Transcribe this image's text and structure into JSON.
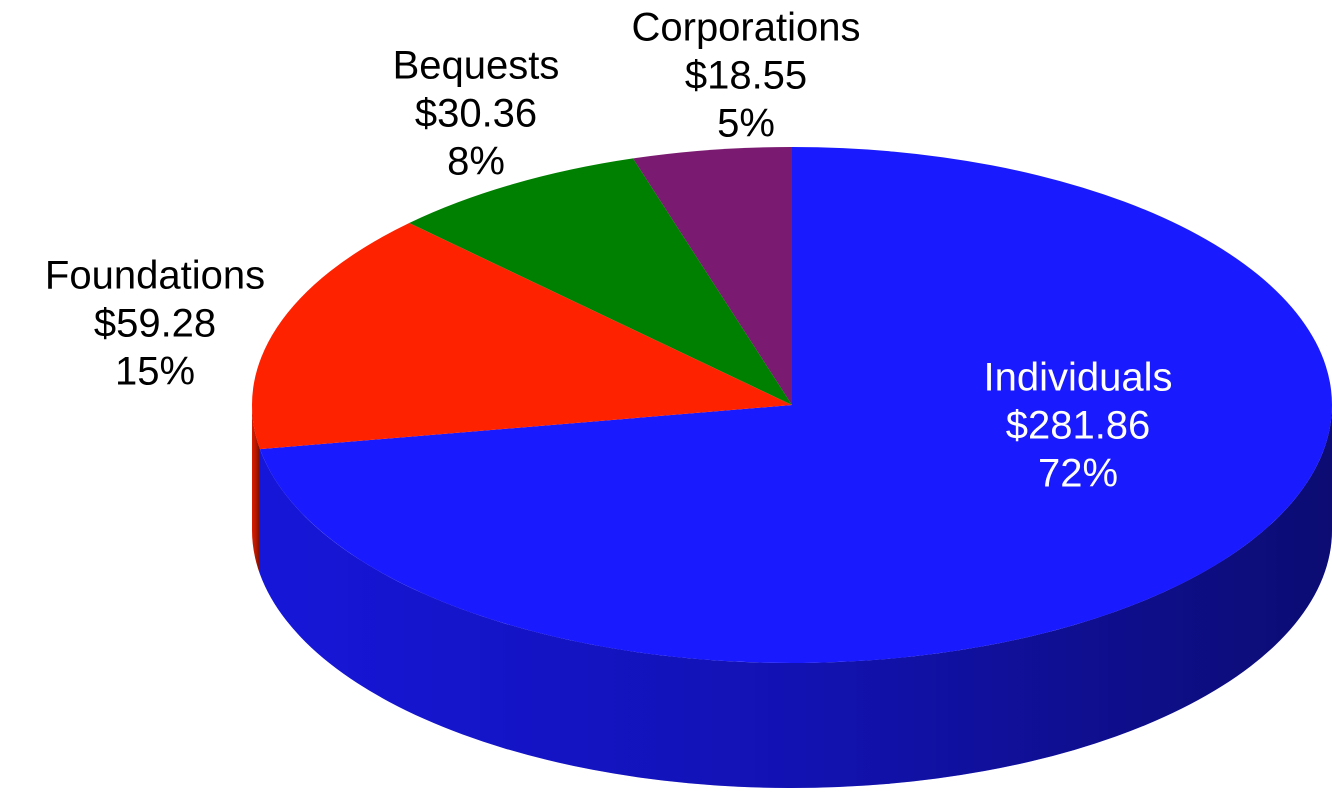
{
  "chart_data": {
    "type": "pie",
    "categories": [
      "Individuals",
      "Foundations",
      "Bequests",
      "Corporations"
    ],
    "values": [
      281.86,
      59.28,
      30.36,
      18.55
    ],
    "value_labels": [
      "$281.86",
      "$59.28",
      "$30.36",
      "$18.55"
    ],
    "percents": [
      72,
      15,
      8,
      5
    ],
    "percent_labels": [
      "72%",
      "15%",
      "8%",
      "5%"
    ],
    "colors": [
      "#1a1aff",
      "#ff2200",
      "#008000",
      "#7a1a70"
    ]
  }
}
